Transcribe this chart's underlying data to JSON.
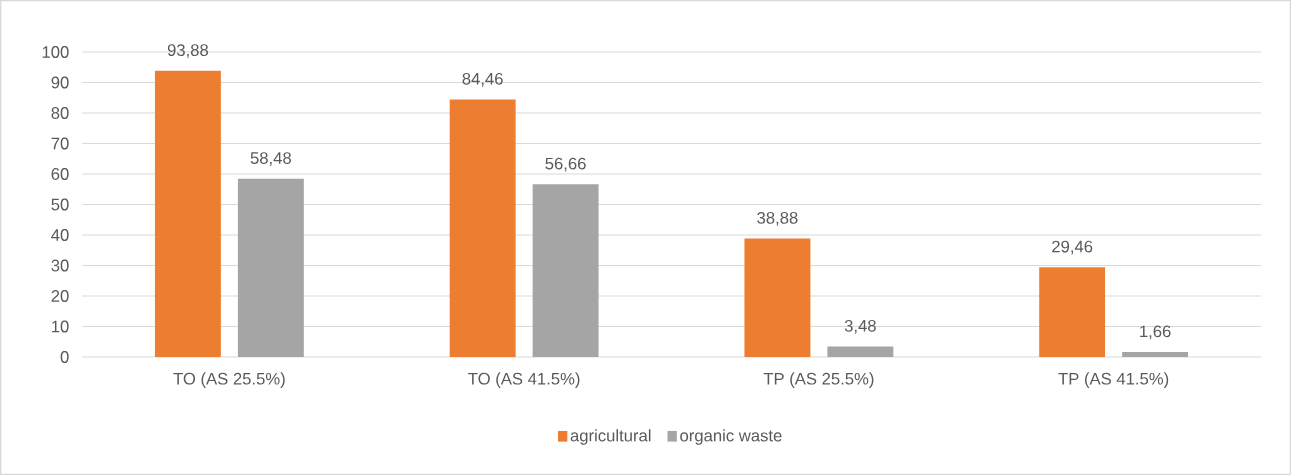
{
  "chart_data": {
    "type": "bar",
    "categories": [
      "TO (AS 25.5%)",
      "TO (AS 41.5%)",
      "TP (AS 25.5%)",
      "TP (AS 41.5%)"
    ],
    "series": [
      {
        "name": "agricultural",
        "color": "#ed7d31",
        "values": [
          93.88,
          84.46,
          38.88,
          29.46
        ],
        "value_labels": [
          "93,88",
          "84,46",
          "38,88",
          "29,46"
        ]
      },
      {
        "name": "organic waste",
        "color": "#a5a5a5",
        "values": [
          58.48,
          56.66,
          3.48,
          1.66
        ],
        "value_labels": [
          "58,48",
          "56,66",
          "3,48",
          "1,66"
        ]
      }
    ],
    "ylim": [
      0,
      100
    ],
    "yticks": [
      0,
      10,
      20,
      30,
      40,
      50,
      60,
      70,
      80,
      90,
      100
    ],
    "grid": "y",
    "legend": "bottom"
  }
}
